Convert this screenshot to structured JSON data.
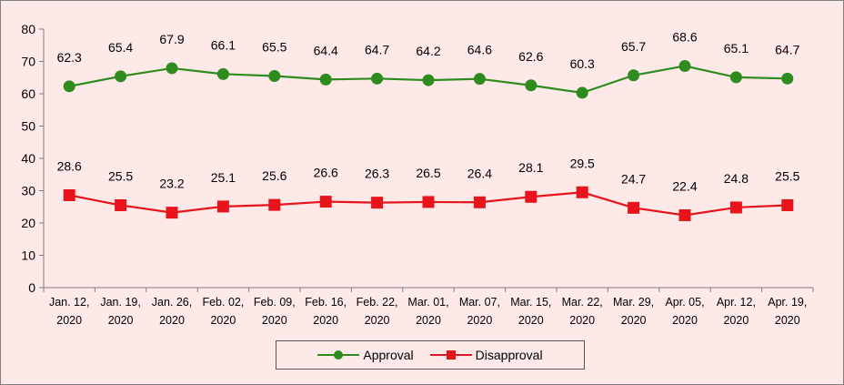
{
  "chart_data": {
    "type": "line",
    "categories": [
      [
        "Jan. 12,",
        "2020"
      ],
      [
        "Jan. 19,",
        "2020"
      ],
      [
        "Jan. 26,",
        "2020"
      ],
      [
        "Feb. 02,",
        "2020"
      ],
      [
        "Feb. 09,",
        "2020"
      ],
      [
        "Feb. 16,",
        "2020"
      ],
      [
        "Feb. 22,",
        "2020"
      ],
      [
        "Mar. 01,",
        "2020"
      ],
      [
        "Mar. 07,",
        "2020"
      ],
      [
        "Mar. 15,",
        "2020"
      ],
      [
        "Mar. 22,",
        "2020"
      ],
      [
        "Mar. 29,",
        "2020"
      ],
      [
        "Apr. 05,",
        "2020"
      ],
      [
        "Apr. 12,",
        "2020"
      ],
      [
        "Apr. 19,",
        "2020"
      ]
    ],
    "series": [
      {
        "name": "Approval",
        "color": "#2e8b1e",
        "marker": "circle",
        "values": [
          62.3,
          65.4,
          67.9,
          66.1,
          65.5,
          64.4,
          64.7,
          64.2,
          64.6,
          62.6,
          60.3,
          65.7,
          68.6,
          65.1,
          64.7
        ],
        "labels": [
          "62.3",
          "65.4",
          "67.9",
          "66.1",
          "65.5",
          "64.4",
          "64.7",
          "64.2",
          "64.6",
          "62.6",
          "60.3",
          "65.7",
          "68.6",
          "65.1",
          "64.7"
        ]
      },
      {
        "name": "Disapproval",
        "color": "#e8141b",
        "marker": "square",
        "values": [
          28.6,
          25.5,
          23.2,
          25.1,
          25.6,
          26.6,
          26.3,
          26.5,
          26.4,
          28.1,
          29.5,
          24.7,
          22.4,
          24.8,
          25.5
        ],
        "labels": [
          "28.6",
          "25.5",
          "23.2",
          "25.1",
          "25.6",
          "26.6",
          "26.3",
          "26.5",
          "26.4",
          "28.1",
          "29.5",
          "24.7",
          "22.4",
          "24.8",
          "25.5"
        ]
      }
    ],
    "ylim": [
      0,
      80
    ],
    "yticks": [
      "0",
      "10",
      "20",
      "30",
      "40",
      "50",
      "60",
      "70",
      "80"
    ],
    "grid": false,
    "legend_position": "bottom"
  }
}
